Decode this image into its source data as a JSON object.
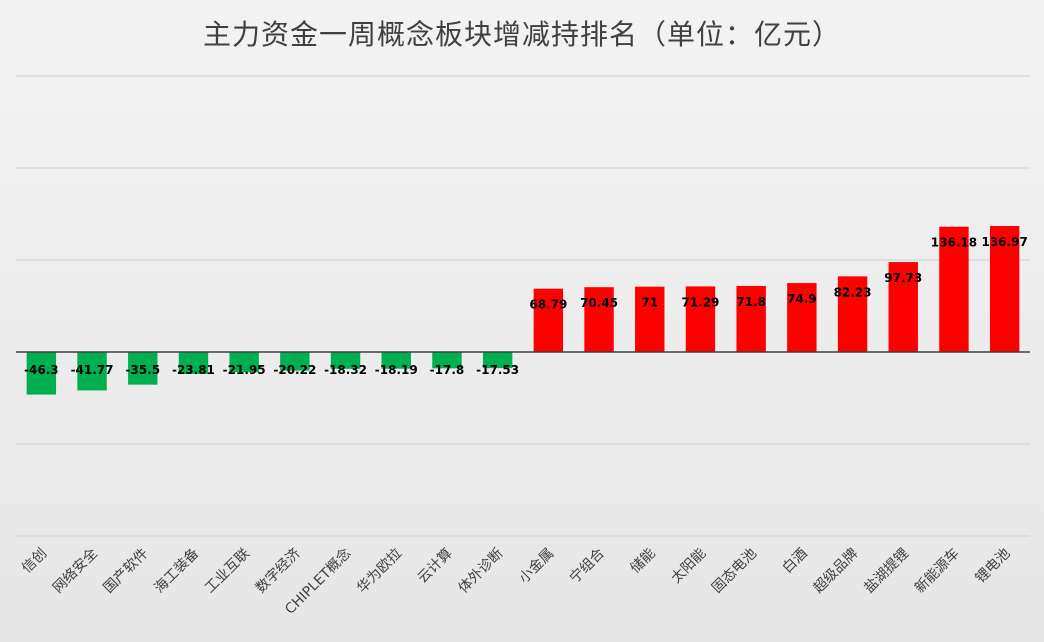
{
  "chart_data": {
    "type": "bar",
    "title": "主力资金一周概念板块增减持排名（单位：亿元）",
    "xlabel": "",
    "ylabel": "",
    "ylim": [
      -200,
      300
    ],
    "grid": true,
    "legend": "none",
    "categories": [
      "信创",
      "网络安全",
      "国产软件",
      "海工装备",
      "工业互联",
      "数字经济",
      "CHIPLET概念",
      "华为欧拉",
      "云计算",
      "体外诊断",
      "小金属",
      "宁组合",
      "储能",
      "太阳能",
      "固态电池",
      "白酒",
      "超级品牌",
      "盐湖提锂",
      "新能源车",
      "锂电池"
    ],
    "values": [
      -46.3,
      -41.77,
      -35.5,
      -23.81,
      -21.95,
      -20.22,
      -18.32,
      -18.19,
      -17.8,
      -17.53,
      68.79,
      70.45,
      71,
      71.29,
      71.8,
      74.9,
      82.23,
      97.73,
      136.18,
      136.97
    ],
    "value_labels": [
      "-46.3",
      "-41.77",
      "-35.5",
      "-23.81",
      "-21.95",
      "-20.22",
      "-18.32",
      "-18.19",
      "-17.8",
      "-17.53",
      "68.79",
      "70.45",
      "71",
      "71.29",
      "71.8",
      "74.9",
      "82.23",
      "97.73",
      "136.18",
      "136.97"
    ],
    "colors": {
      "positive": "#ff0000",
      "negative": "#00b050",
      "grid": "#d0d0d0",
      "axis": "#404040",
      "title": "#404040"
    }
  }
}
